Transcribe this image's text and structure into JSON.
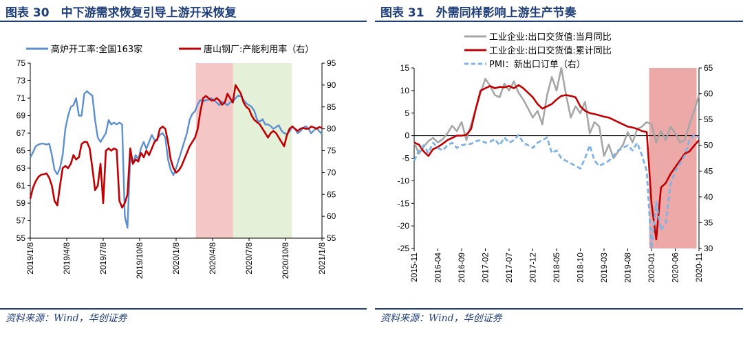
{
  "left_panel": {
    "title": "图表 30　中下游需求恢复引导上游开采恢复",
    "source": "资料来源：Wind，华创证券"
  },
  "right_panel": {
    "title": "图表 31　外需同样影响上游生产节奏",
    "source": "资料来源：Wind，华创证券"
  },
  "colors": {
    "blue": "#5b8fd0",
    "red": "#c00000",
    "grey": "#a6a6a6",
    "dashblue": "#7fb2e5",
    "pink_shade": "#f4c6c6",
    "green_shade": "#e5f0d8",
    "rose_shade": "#eda8a8",
    "title_blue": "#1f3f7a"
  },
  "chart_data": [
    {
      "type": "line",
      "title": "",
      "x_ticks": [
        "2019/1/8",
        "2019/4/8",
        "2019/7/8",
        "2019/10/8",
        "2020/1/8",
        "2020/4/8",
        "2020/7/8",
        "2020/10/8",
        "2021/1/8"
      ],
      "x_range": [
        0,
        108
      ],
      "ylim_left": [
        55,
        75
      ],
      "y_ticks_left": [
        55,
        57,
        59,
        61,
        63,
        65,
        67,
        69,
        71,
        73,
        75
      ],
      "ylim_right": [
        55,
        95
      ],
      "y_ticks_right": [
        55,
        60,
        65,
        70,
        75,
        80,
        85,
        90,
        95
      ],
      "shaded_regions": [
        {
          "from": 61.3,
          "to": 75.1,
          "color": "pink"
        },
        {
          "from": 75.1,
          "to": 96.9,
          "color": "green"
        }
      ],
      "legend_position": "top",
      "series": [
        {
          "name": "高炉开工率:全国163家",
          "axis": "left",
          "x": [
            0,
            1,
            2,
            3,
            4,
            5,
            6,
            7,
            8,
            9,
            10,
            11,
            12,
            13,
            14,
            15,
            16,
            17,
            18,
            19,
            20,
            21,
            22,
            23,
            24,
            25,
            26,
            27,
            28,
            29,
            30,
            31,
            32,
            33,
            34,
            35,
            36,
            37,
            38,
            39,
            40,
            41,
            42,
            43,
            44,
            45,
            46,
            47,
            48,
            49,
            50,
            51,
            52,
            53,
            54,
            55,
            56,
            57,
            58,
            59,
            60,
            61,
            62,
            63,
            64,
            65,
            66,
            67,
            68,
            69,
            70,
            71,
            72,
            73,
            74,
            75,
            76,
            77,
            78,
            79,
            80,
            81,
            82,
            83,
            84,
            85,
            86,
            87,
            88,
            89,
            90,
            91,
            92,
            93,
            94,
            95,
            96,
            97,
            98,
            99,
            100,
            101,
            102,
            103,
            104,
            105,
            106,
            107,
            108
          ],
          "values": [
            64.2,
            64.8,
            65.5,
            65.7,
            65.8,
            65.8,
            65.7,
            65.8,
            64.5,
            62.8,
            62.3,
            63.0,
            64.5,
            67.5,
            69.0,
            70.0,
            70.2,
            71.0,
            69.0,
            69.0,
            71.5,
            71.8,
            71.5,
            71.3,
            68.5,
            66.5,
            66.0,
            66.5,
            67.0,
            68.5,
            68.0,
            68.2,
            68.0,
            68.2,
            68.0,
            57.5,
            56.2,
            64.2,
            63.5,
            64.5,
            64.0,
            65.3,
            66.0,
            65.2,
            66.0,
            66.8,
            66.2,
            66.3,
            66.8,
            67.0,
            66.5,
            64.0,
            62.8,
            62.2,
            63.0,
            64.0,
            65.0,
            66.0,
            67.0,
            68.5,
            69.2,
            69.5,
            70.3,
            70.8,
            70.6,
            70.8,
            70.8,
            71.0,
            70.8,
            70.5,
            70.2,
            70.6,
            70.4,
            70.2,
            70.5,
            70.6,
            71.0,
            71.3,
            71.2,
            70.8,
            70.4,
            70.2,
            70.0,
            69.5,
            68.5,
            68.3,
            68.6,
            68.0,
            68.0,
            67.8,
            67.5,
            67.7,
            67.9,
            67.3,
            67.0,
            66.9,
            67.2,
            67.8,
            67.5,
            67.0,
            67.2,
            67.6,
            67.8,
            67.5,
            67.0,
            67.3,
            67.6,
            67.2,
            66.9
          ]
        },
        {
          "name": "唐山钢厂:产能利用率（右）",
          "axis": "right",
          "x": [
            0,
            1,
            2,
            3,
            4,
            5,
            6,
            7,
            8,
            9,
            10,
            11,
            12,
            13,
            14,
            15,
            16,
            17,
            18,
            19,
            20,
            21,
            22,
            23,
            24,
            25,
            26,
            27,
            28,
            29,
            30,
            31,
            32,
            33,
            34,
            35,
            36,
            37,
            38,
            39,
            40,
            41,
            42,
            43,
            44,
            45,
            46,
            47,
            48,
            49,
            50,
            51,
            52,
            53,
            54,
            55,
            56,
            57,
            58,
            59,
            60,
            61,
            62,
            63,
            64,
            65,
            66,
            67,
            68,
            69,
            70,
            71,
            72,
            73,
            74,
            75,
            76,
            77,
            78,
            79,
            80,
            81,
            82,
            83,
            84,
            85,
            86,
            87,
            88,
            89,
            90,
            91,
            92,
            93,
            94,
            95,
            96,
            97,
            98,
            99,
            100,
            101,
            102,
            103,
            104,
            105,
            106,
            107,
            108
          ],
          "values": [
            64.0,
            66.5,
            68.0,
            69.0,
            69.5,
            69.6,
            69.8,
            68.8,
            67.0,
            63.5,
            62.5,
            67.0,
            71.0,
            71.5,
            71.0,
            72.0,
            74.0,
            73.0,
            73.5,
            76.5,
            77.0,
            77.0,
            75.5,
            71.0,
            66.0,
            67.0,
            72.0,
            63.0,
            75.0,
            75.5,
            75.0,
            75.5,
            75.2,
            63.5,
            62.0,
            63.0,
            65.0,
            75.5,
            72.0,
            73.0,
            72.5,
            74.5,
            73.5,
            75.0,
            74.0,
            75.5,
            77.0,
            77.5,
            80.0,
            80.5,
            80.0,
            77.0,
            73.0,
            71.0,
            70.0,
            70.5,
            71.5,
            73.0,
            74.5,
            76.0,
            77.0,
            78.0,
            80.0,
            84.0,
            87.0,
            87.5,
            87.0,
            86.5,
            86.5,
            87.0,
            86.5,
            85.5,
            86.0,
            88.0,
            87.0,
            86.0,
            90.0,
            89.0,
            88.0,
            86.0,
            85.0,
            84.5,
            83.0,
            82.0,
            81.5,
            81.0,
            80.0,
            79.0,
            78.0,
            79.0,
            79.5,
            79.0,
            78.0,
            77.0,
            76.0,
            78.5,
            80.0,
            80.5,
            80.0,
            79.5,
            80.0,
            80.2,
            80.0,
            80.0,
            80.5,
            80.3,
            80.0,
            80.4,
            80.2
          ]
        }
      ]
    },
    {
      "type": "line",
      "title": "",
      "x_ticks": [
        "2015-11",
        "2016-04",
        "2016-09",
        "2017-02",
        "2017-07",
        "2017-12",
        "2018-05",
        "2018-10",
        "2019-03",
        "2019-08",
        "2020-01",
        "2020-06",
        "2020-11"
      ],
      "x_range": [
        0,
        60
      ],
      "ylim_left": [
        -25,
        15
      ],
      "y_ticks_left": [
        -25,
        -20,
        -15,
        -10,
        -5,
        0,
        5,
        10,
        15
      ],
      "ylim_right": [
        30,
        65
      ],
      "y_ticks_right": [
        30,
        35,
        40,
        45,
        50,
        55,
        60,
        65
      ],
      "shaded_regions": [
        {
          "from": 49.5,
          "to": 59.5,
          "color": "rose"
        }
      ],
      "legend_position": "top",
      "series": [
        {
          "name": "工业企业:出口交货值:当月同比",
          "axis": "left",
          "x": [
            0,
            1,
            2,
            3,
            4,
            5,
            6,
            7,
            8,
            9,
            10,
            11,
            12,
            13,
            14,
            15,
            16,
            17,
            18,
            19,
            20,
            21,
            22,
            23,
            24,
            25,
            26,
            27,
            28,
            29,
            30,
            31,
            32,
            33,
            34,
            35,
            36,
            37,
            38,
            39,
            40,
            41,
            42,
            43,
            44,
            45,
            46,
            47,
            48,
            49,
            50,
            51,
            52,
            53,
            54,
            55,
            56,
            57,
            58,
            59,
            60
          ],
          "values": [
            -1.5,
            -4.0,
            -2.5,
            -1.2,
            -0.5,
            -1.5,
            -0.8,
            0.5,
            2.2,
            1.0,
            3.0,
            -1.0,
            2.5,
            6.0,
            9.5,
            12.6,
            11.0,
            9.0,
            8.5,
            11.5,
            10.0,
            12.0,
            9.5,
            8.0,
            6.0,
            4.0,
            5.5,
            2.5,
            9.0,
            13.0,
            10.0,
            15.0,
            9.0,
            4.0,
            6.5,
            5.0,
            7.5,
            0.5,
            3.0,
            2.0,
            -4.5,
            -2.0,
            -5.0,
            -3.5,
            -2.0,
            0.8,
            -1.5,
            1.5,
            2.0,
            3.0,
            2.5,
            -1.5,
            1.0,
            -1.0,
            2.0,
            0.5,
            -1.5,
            -1.0,
            2.5,
            5.5,
            9.0
          ]
        },
        {
          "name": "工业企业:出口交货值:累计同比",
          "axis": "left",
          "x": [
            0,
            1,
            2,
            3,
            4,
            5,
            6,
            7,
            8,
            9,
            10,
            11,
            12,
            13,
            14,
            15,
            16,
            17,
            18,
            19,
            20,
            21,
            22,
            23,
            24,
            25,
            26,
            27,
            28,
            29,
            30,
            31,
            32,
            33,
            34,
            35,
            36,
            37,
            38,
            39,
            40,
            41,
            42,
            43,
            44,
            45,
            46,
            47,
            48,
            49,
            50,
            51,
            52,
            53,
            54,
            55,
            56,
            57,
            58,
            59,
            60
          ],
          "values": [
            -1.5,
            -2.0,
            -3.5,
            -4.5,
            -3.0,
            -2.5,
            -1.8,
            -1.0,
            -0.5,
            0.0,
            0.0,
            0.2,
            1.5,
            6.0,
            10.0,
            10.5,
            11.0,
            10.5,
            10.8,
            10.7,
            11.0,
            10.5,
            11.2,
            10.5,
            9.5,
            8.5,
            7.0,
            6.0,
            6.5,
            7.0,
            8.0,
            8.8,
            9.0,
            8.8,
            8.5,
            6.5,
            5.5,
            5.0,
            4.8,
            4.5,
            4.2,
            4.0,
            3.5,
            3.0,
            2.5,
            2.0,
            1.8,
            1.5,
            1.0,
            0.8,
            -15.0,
            -23.0,
            -11.5,
            -10.5,
            -8.5,
            -7.0,
            -5.5,
            -4.0,
            -3.5,
            -2.2,
            -1.0
          ]
        },
        {
          "name": "PMI：新出口订单（右）",
          "axis": "right",
          "dashed": true,
          "x": [
            0,
            1,
            2,
            3,
            4,
            5,
            6,
            7,
            8,
            9,
            10,
            11,
            12,
            13,
            14,
            15,
            16,
            17,
            18,
            19,
            20,
            21,
            22,
            23,
            24,
            25,
            26,
            27,
            28,
            29,
            30,
            31,
            32,
            33,
            34,
            35,
            36,
            37,
            38,
            39,
            40,
            41,
            42,
            43,
            44,
            45,
            46,
            47,
            48,
            49,
            50,
            51,
            52,
            53,
            54,
            55,
            56,
            57,
            58,
            59,
            60
          ],
          "values": [
            47.0,
            49.0,
            50.0,
            48.5,
            50.5,
            49.5,
            49.0,
            50.0,
            50.5,
            49.5,
            50.0,
            50.2,
            50.3,
            50.8,
            51.0,
            50.5,
            50.7,
            51.2,
            50.0,
            51.5,
            50.5,
            51.0,
            52.0,
            50.5,
            50.0,
            49.5,
            50.5,
            51.0,
            51.5,
            48.5,
            49.0,
            47.5,
            47.0,
            46.5,
            46.0,
            45.5,
            47.5,
            50.0,
            47.0,
            46.0,
            46.5,
            47.0,
            48.0,
            49.0,
            49.5,
            50.0,
            49.0,
            50.5,
            48.0,
            45.0,
            30.0,
            39.0,
            33.5,
            35.0,
            42.5,
            45.0,
            46.5,
            48.0,
            51.0,
            52.0,
            51.5
          ]
        }
      ]
    }
  ]
}
